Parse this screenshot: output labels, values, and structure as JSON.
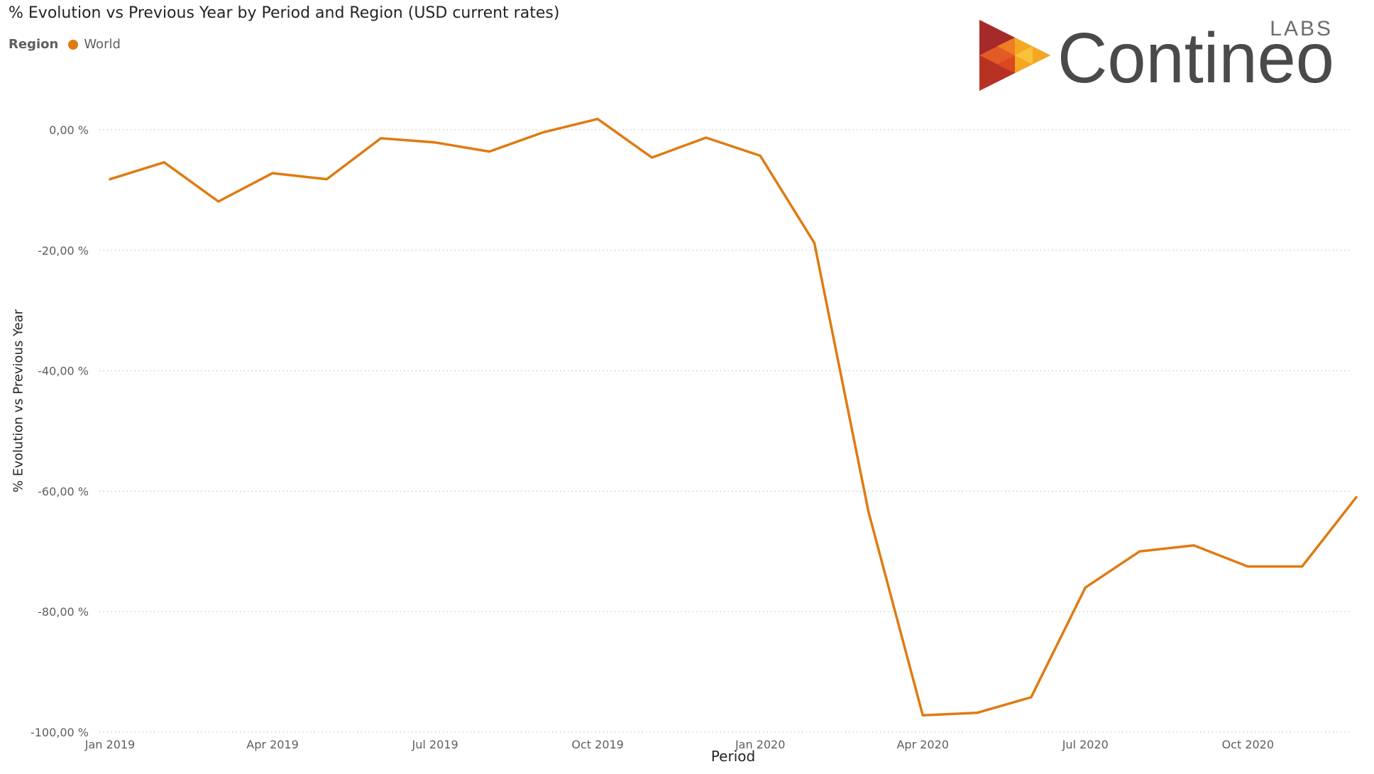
{
  "title": "% Evolution vs Previous Year by Period and Region (USD current rates)",
  "legend": {
    "title": "Region",
    "items": [
      {
        "label": "World",
        "color": "#E07A10"
      }
    ]
  },
  "logo": {
    "text": "Contineo",
    "sub": "LABS",
    "icon": "triangular-play-mosaic-icon"
  },
  "chart_data": {
    "type": "line",
    "title": "% Evolution vs Previous Year by Period and Region (USD current rates)",
    "xlabel": "Period",
    "ylabel": "% Evolution vs Previous Year",
    "x": [
      "Jan 2019",
      "Feb 2019",
      "Mar 2019",
      "Apr 2019",
      "May 2019",
      "Jun 2019",
      "Jul 2019",
      "Aug 2019",
      "Sep 2019",
      "Oct 2019",
      "Nov 2019",
      "Dec 2019",
      "Jan 2020",
      "Feb 2020",
      "Mar 2020",
      "Apr 2020",
      "May 2020",
      "Jun 2020",
      "Jul 2020",
      "Aug 2020",
      "Sep 2020",
      "Oct 2020",
      "Nov 2020",
      "Dec 2020"
    ],
    "xticks": [
      "Jan 2019",
      "Apr 2019",
      "Jul 2019",
      "Oct 2019",
      "Jan 2020",
      "Apr 2020",
      "Jul 2020",
      "Oct 2020"
    ],
    "yticks": [
      0,
      -20,
      -40,
      -60,
      -80,
      -100
    ],
    "ytick_labels": [
      "0,00 %",
      "-20,00 %",
      "-40,00 %",
      "-60,00 %",
      "-80,00 %",
      "-100,00 %"
    ],
    "ylim": [
      -100,
      2
    ],
    "grid": true,
    "legend_position": "top-left",
    "series": [
      {
        "name": "World",
        "color": "#E07A10",
        "values": [
          -8.2,
          -5.4,
          -11.9,
          -7.2,
          -8.2,
          -1.4,
          -2.1,
          -3.6,
          -0.4,
          1.8,
          -4.6,
          -1.3,
          -4.3,
          -18.8,
          -63.5,
          -97.2,
          -96.8,
          -94.2,
          -76.0,
          -70.0,
          -69.0,
          -72.5,
          -72.5,
          -61.0
        ]
      }
    ]
  }
}
